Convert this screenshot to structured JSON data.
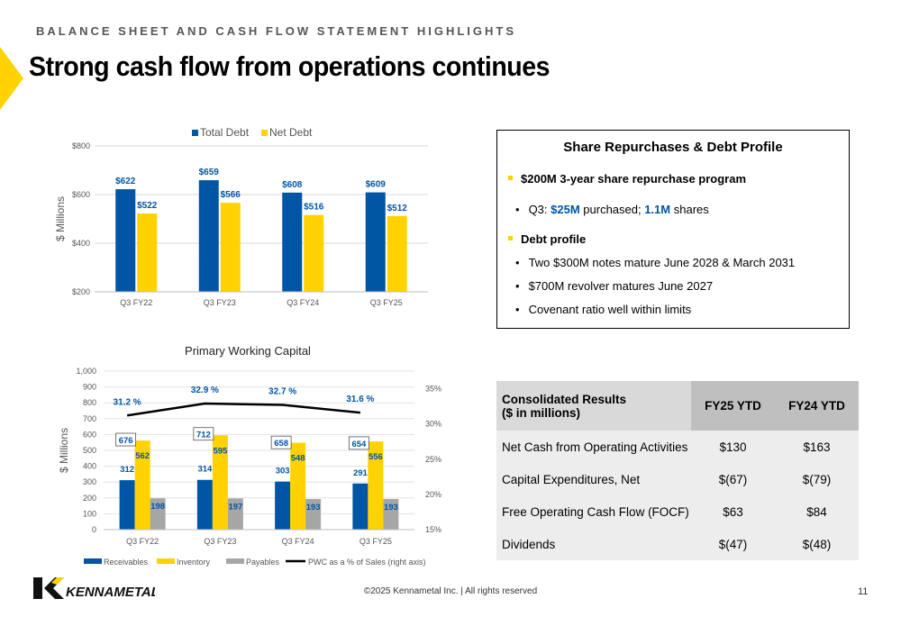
{
  "header": {
    "eyebrow": "BALANCE SHEET AND CASH FLOW STATEMENT HIGHLIGHTS",
    "title": "Strong cash flow from operations continues"
  },
  "colors": {
    "blue": "#0055A5",
    "yellow": "#FFD200",
    "gray": "#A6A6A6",
    "line": "#000000"
  },
  "chart_data": [
    {
      "type": "bar",
      "categories": [
        "Q3 FY22",
        "Q3 FY23",
        "Q3 FY24",
        "Q3 FY25"
      ],
      "series": [
        {
          "name": "Total Debt",
          "values": [
            622,
            659,
            608,
            609
          ],
          "labels": [
            "$622",
            "$659",
            "$608",
            "$609"
          ]
        },
        {
          "name": "Net Debt",
          "values": [
            522,
            566,
            516,
            512
          ],
          "labels": [
            "$522",
            "$566",
            "$516",
            "$512"
          ]
        }
      ],
      "ylabel": "$ Millions",
      "yticks": [
        "$200",
        "$400",
        "$600",
        "$800"
      ],
      "ylim": [
        200,
        800
      ],
      "legend": "top",
      "grid": true
    },
    {
      "type": "bar",
      "title": "Primary Working Capital",
      "categories": [
        "Q3 FY22",
        "Q3 FY23",
        "Q3 FY24",
        "Q3 FY25"
      ],
      "series": [
        {
          "name": "Receivables",
          "values": [
            312,
            314,
            303,
            291
          ]
        },
        {
          "name": "Inventory",
          "values": [
            562,
            595,
            548,
            556
          ]
        },
        {
          "name": "Payables",
          "values": [
            198,
            197,
            193,
            193
          ]
        },
        {
          "name": "PWC as a % of Sales (right axis)",
          "type": "line",
          "values": [
            31.2,
            32.9,
            32.7,
            31.6
          ],
          "labels": [
            "31.2 %",
            "32.9 %",
            "32.7 %",
            "31.6 %"
          ]
        }
      ],
      "totals": [
        676,
        712,
        658,
        654
      ],
      "ylabel": "$ Millions",
      "yticks": [
        "0",
        "100",
        "200",
        "300",
        "400",
        "500",
        "600",
        "700",
        "800",
        "900",
        "1,000"
      ],
      "ylim": [
        0,
        1000
      ],
      "y2ticks": [
        "15%",
        "20%",
        "25%",
        "30%",
        "35%"
      ],
      "y2lim": [
        15,
        37.5
      ],
      "legend": "bottom",
      "grid": true
    }
  ],
  "repurchase": {
    "title": "Share Repurchases & Debt Profile",
    "item1": "$200M 3-year share repurchase program",
    "q3_prefix": "Q3: ",
    "q3_amount": "$25M",
    "q3_mid": " purchased; ",
    "q3_shares": "1.1M",
    "q3_suffix": " shares",
    "item2": "Debt profile",
    "sub1": "Two $300M notes mature June 2028 & March 2031",
    "sub2": "$700M revolver matures June 2027",
    "sub3": "Covenant ratio well within limits",
    "bullet": "•"
  },
  "results": {
    "header_line1": "Consolidated Results",
    "header_line2": "($ in millions)",
    "col1": "FY25 YTD",
    "col2": "FY24 YTD",
    "rows": [
      {
        "label": "Net Cash from Operating Activities",
        "fy25": "$130",
        "fy24": "$163"
      },
      {
        "label": "Capital Expenditures, Net",
        "fy25": "$(67)",
        "fy24": "$(79)"
      },
      {
        "label": "Free Operating Cash Flow  (FOCF)",
        "fy25": "$63",
        "fy24": "$84"
      },
      {
        "label": "Dividends",
        "fy25": "$(47)",
        "fy24": "$(48)"
      }
    ]
  },
  "footer": {
    "copyright": "©2025 Kennametal Inc.  |  All rights reserved",
    "page": "11",
    "logo_text": "KENNAMETAL"
  }
}
